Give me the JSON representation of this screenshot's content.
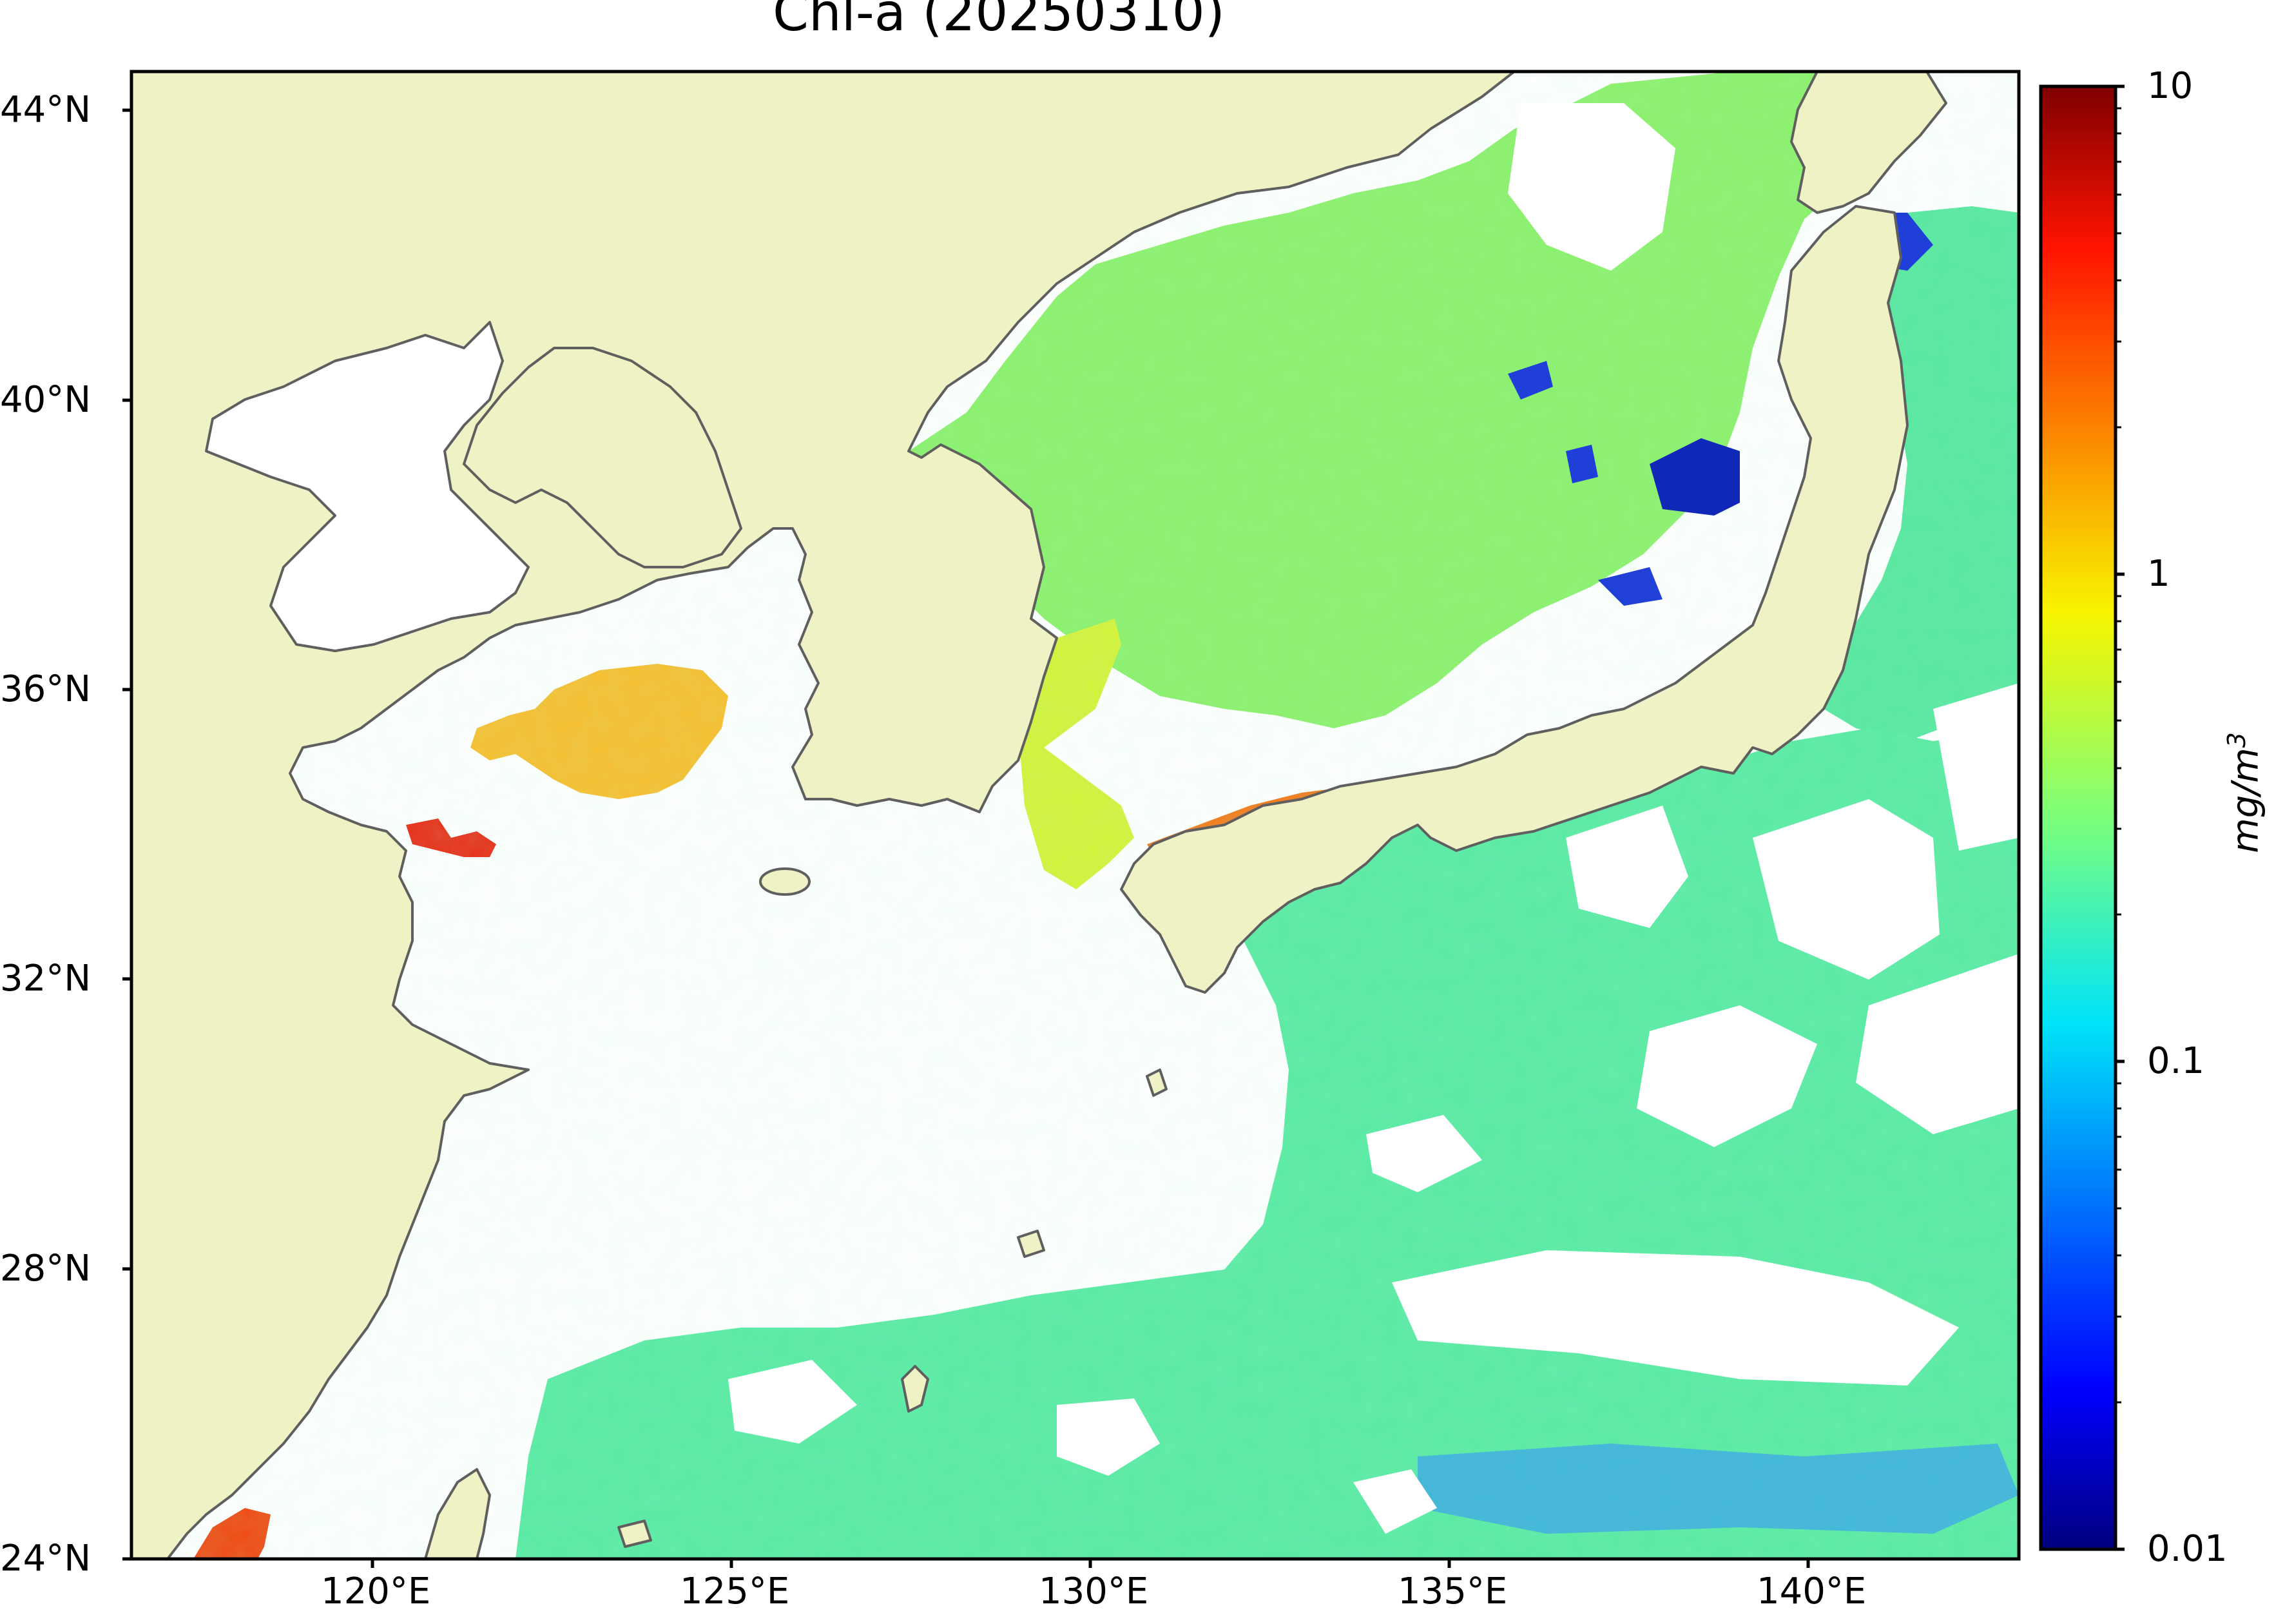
{
  "title": "Chl-a (20250310)",
  "map": {
    "lat_range": [
      24,
      44.5
    ],
    "lon_range": [
      116.7,
      143
    ],
    "land_color": "#eff2c5",
    "no_data_color": "#ffffff",
    "coastline_color": "#5f5f5f",
    "lat_ticks": [
      {
        "value": 44,
        "label": "44°N"
      },
      {
        "value": 40,
        "label": "40°N"
      },
      {
        "value": 36,
        "label": "36°N"
      },
      {
        "value": 32,
        "label": "32°N"
      },
      {
        "value": 28,
        "label": "28°N"
      },
      {
        "value": 24,
        "label": "24°N"
      }
    ],
    "lon_ticks": [
      {
        "value": 120,
        "label": "120°E"
      },
      {
        "value": 125,
        "label": "125°E"
      },
      {
        "value": 130,
        "label": "130°E"
      },
      {
        "value": 135,
        "label": "135°E"
      },
      {
        "value": 140,
        "label": "140°E"
      }
    ]
  },
  "colorbar": {
    "label": "mg/m3",
    "scale": "log",
    "range": [
      0.01,
      10
    ],
    "colormap": "jet",
    "ticks": [
      {
        "value": 10,
        "label": "10"
      },
      {
        "value": 1,
        "label": "1"
      },
      {
        "value": 0.1,
        "label": "0.1"
      },
      {
        "value": 0.01,
        "label": "0.01"
      }
    ]
  }
}
